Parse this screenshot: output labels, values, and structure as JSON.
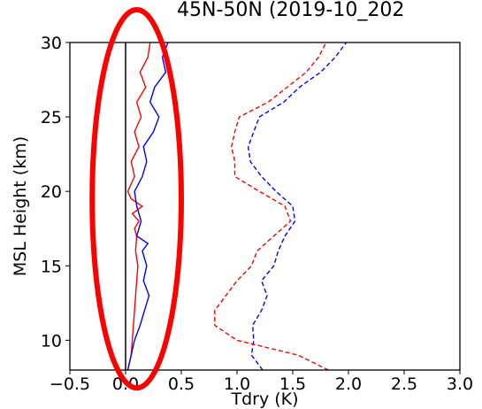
{
  "chart_data": {
    "type": "line",
    "title": "45N-50N (2019-10_202",
    "xlabel": "Tdry (K)",
    "ylabel": "MSL Height (km)",
    "xlim": [
      -0.5,
      3.0
    ],
    "ylim": [
      8,
      30
    ],
    "x_ticks": [
      -0.5,
      0.0,
      0.5,
      1.0,
      1.5,
      2.0,
      2.5,
      3.0
    ],
    "x_tick_labels": [
      "−0.5",
      "0.0",
      "0.5",
      "1.0",
      "1.5",
      "2.0",
      "2.5",
      "3.0"
    ],
    "y_ticks": [
      10,
      15,
      20,
      25,
      30
    ],
    "y_tick_labels": [
      "10",
      "15",
      "20",
      "25",
      "30"
    ],
    "grid": false,
    "reference_line": {
      "x": 0.0,
      "color": "#000000"
    },
    "annotation": {
      "shape": "ellipse",
      "color": "#ff0000",
      "center_x": 0.1,
      "center_y": 19.5,
      "rx": 0.4,
      "ry": 12.7
    },
    "series": [
      {
        "color": "#ff0000",
        "style": "solid",
        "y": [
          8.0,
          9.0,
          10.0,
          11.0,
          12.0,
          13.0,
          14.0,
          15.0,
          16.0,
          17.0,
          17.5,
          18.0,
          18.5,
          19.0,
          19.5,
          20.0,
          21.0,
          22.0,
          23.0,
          24.0,
          25.0,
          26.0,
          27.0,
          28.0,
          29.0,
          30.0
        ],
        "x": [
          0.02,
          0.05,
          0.06,
          0.07,
          0.08,
          0.09,
          0.1,
          0.11,
          0.09,
          0.1,
          0.08,
          0.12,
          0.06,
          0.15,
          0.05,
          0.02,
          0.08,
          0.05,
          0.12,
          0.08,
          0.14,
          0.1,
          0.18,
          0.13,
          0.2,
          0.22
        ]
      },
      {
        "color": "#0000ff",
        "style": "solid",
        "y": [
          8.0,
          9.0,
          10.0,
          11.0,
          12.0,
          13.0,
          14.0,
          15.0,
          16.0,
          16.5,
          17.0,
          18.0,
          19.0,
          20.0,
          21.0,
          22.0,
          23.0,
          24.0,
          25.0,
          26.0,
          27.0,
          28.0,
          29.0,
          30.0
        ],
        "x": [
          0.02,
          0.05,
          0.08,
          0.13,
          0.17,
          0.21,
          0.16,
          0.19,
          0.15,
          0.2,
          0.1,
          0.14,
          0.1,
          0.08,
          0.15,
          0.19,
          0.16,
          0.25,
          0.3,
          0.22,
          0.26,
          0.36,
          0.33,
          0.38
        ]
      },
      {
        "color": "#0000ff",
        "style": "dashed",
        "y": [
          8.0,
          9.0,
          10.0,
          11.0,
          12.0,
          13.0,
          14.0,
          15.0,
          16.0,
          17.0,
          18.0,
          19.0,
          20.0,
          21.0,
          22.0,
          23.0,
          24.0,
          25.0,
          26.0,
          27.0,
          28.0,
          29.0,
          30.0
        ],
        "x": [
          1.23,
          1.13,
          1.15,
          1.14,
          1.22,
          1.27,
          1.22,
          1.33,
          1.37,
          1.43,
          1.52,
          1.5,
          1.35,
          1.22,
          1.12,
          1.1,
          1.15,
          1.2,
          1.42,
          1.56,
          1.75,
          1.88,
          1.98
        ]
      },
      {
        "color": "#ff0000",
        "style": "dashed",
        "y": [
          8.0,
          9.0,
          10.0,
          11.0,
          12.0,
          13.0,
          14.0,
          15.0,
          16.0,
          17.0,
          18.0,
          19.0,
          20.0,
          21.0,
          22.0,
          23.0,
          24.0,
          25.0,
          26.0,
          27.0,
          28.0,
          29.0,
          30.0
        ],
        "x": [
          1.82,
          1.55,
          1.0,
          0.8,
          0.8,
          0.9,
          1.0,
          1.13,
          1.18,
          1.33,
          1.48,
          1.43,
          1.2,
          0.98,
          0.98,
          0.95,
          0.98,
          1.02,
          1.28,
          1.45,
          1.62,
          1.73,
          1.8
        ]
      }
    ]
  }
}
